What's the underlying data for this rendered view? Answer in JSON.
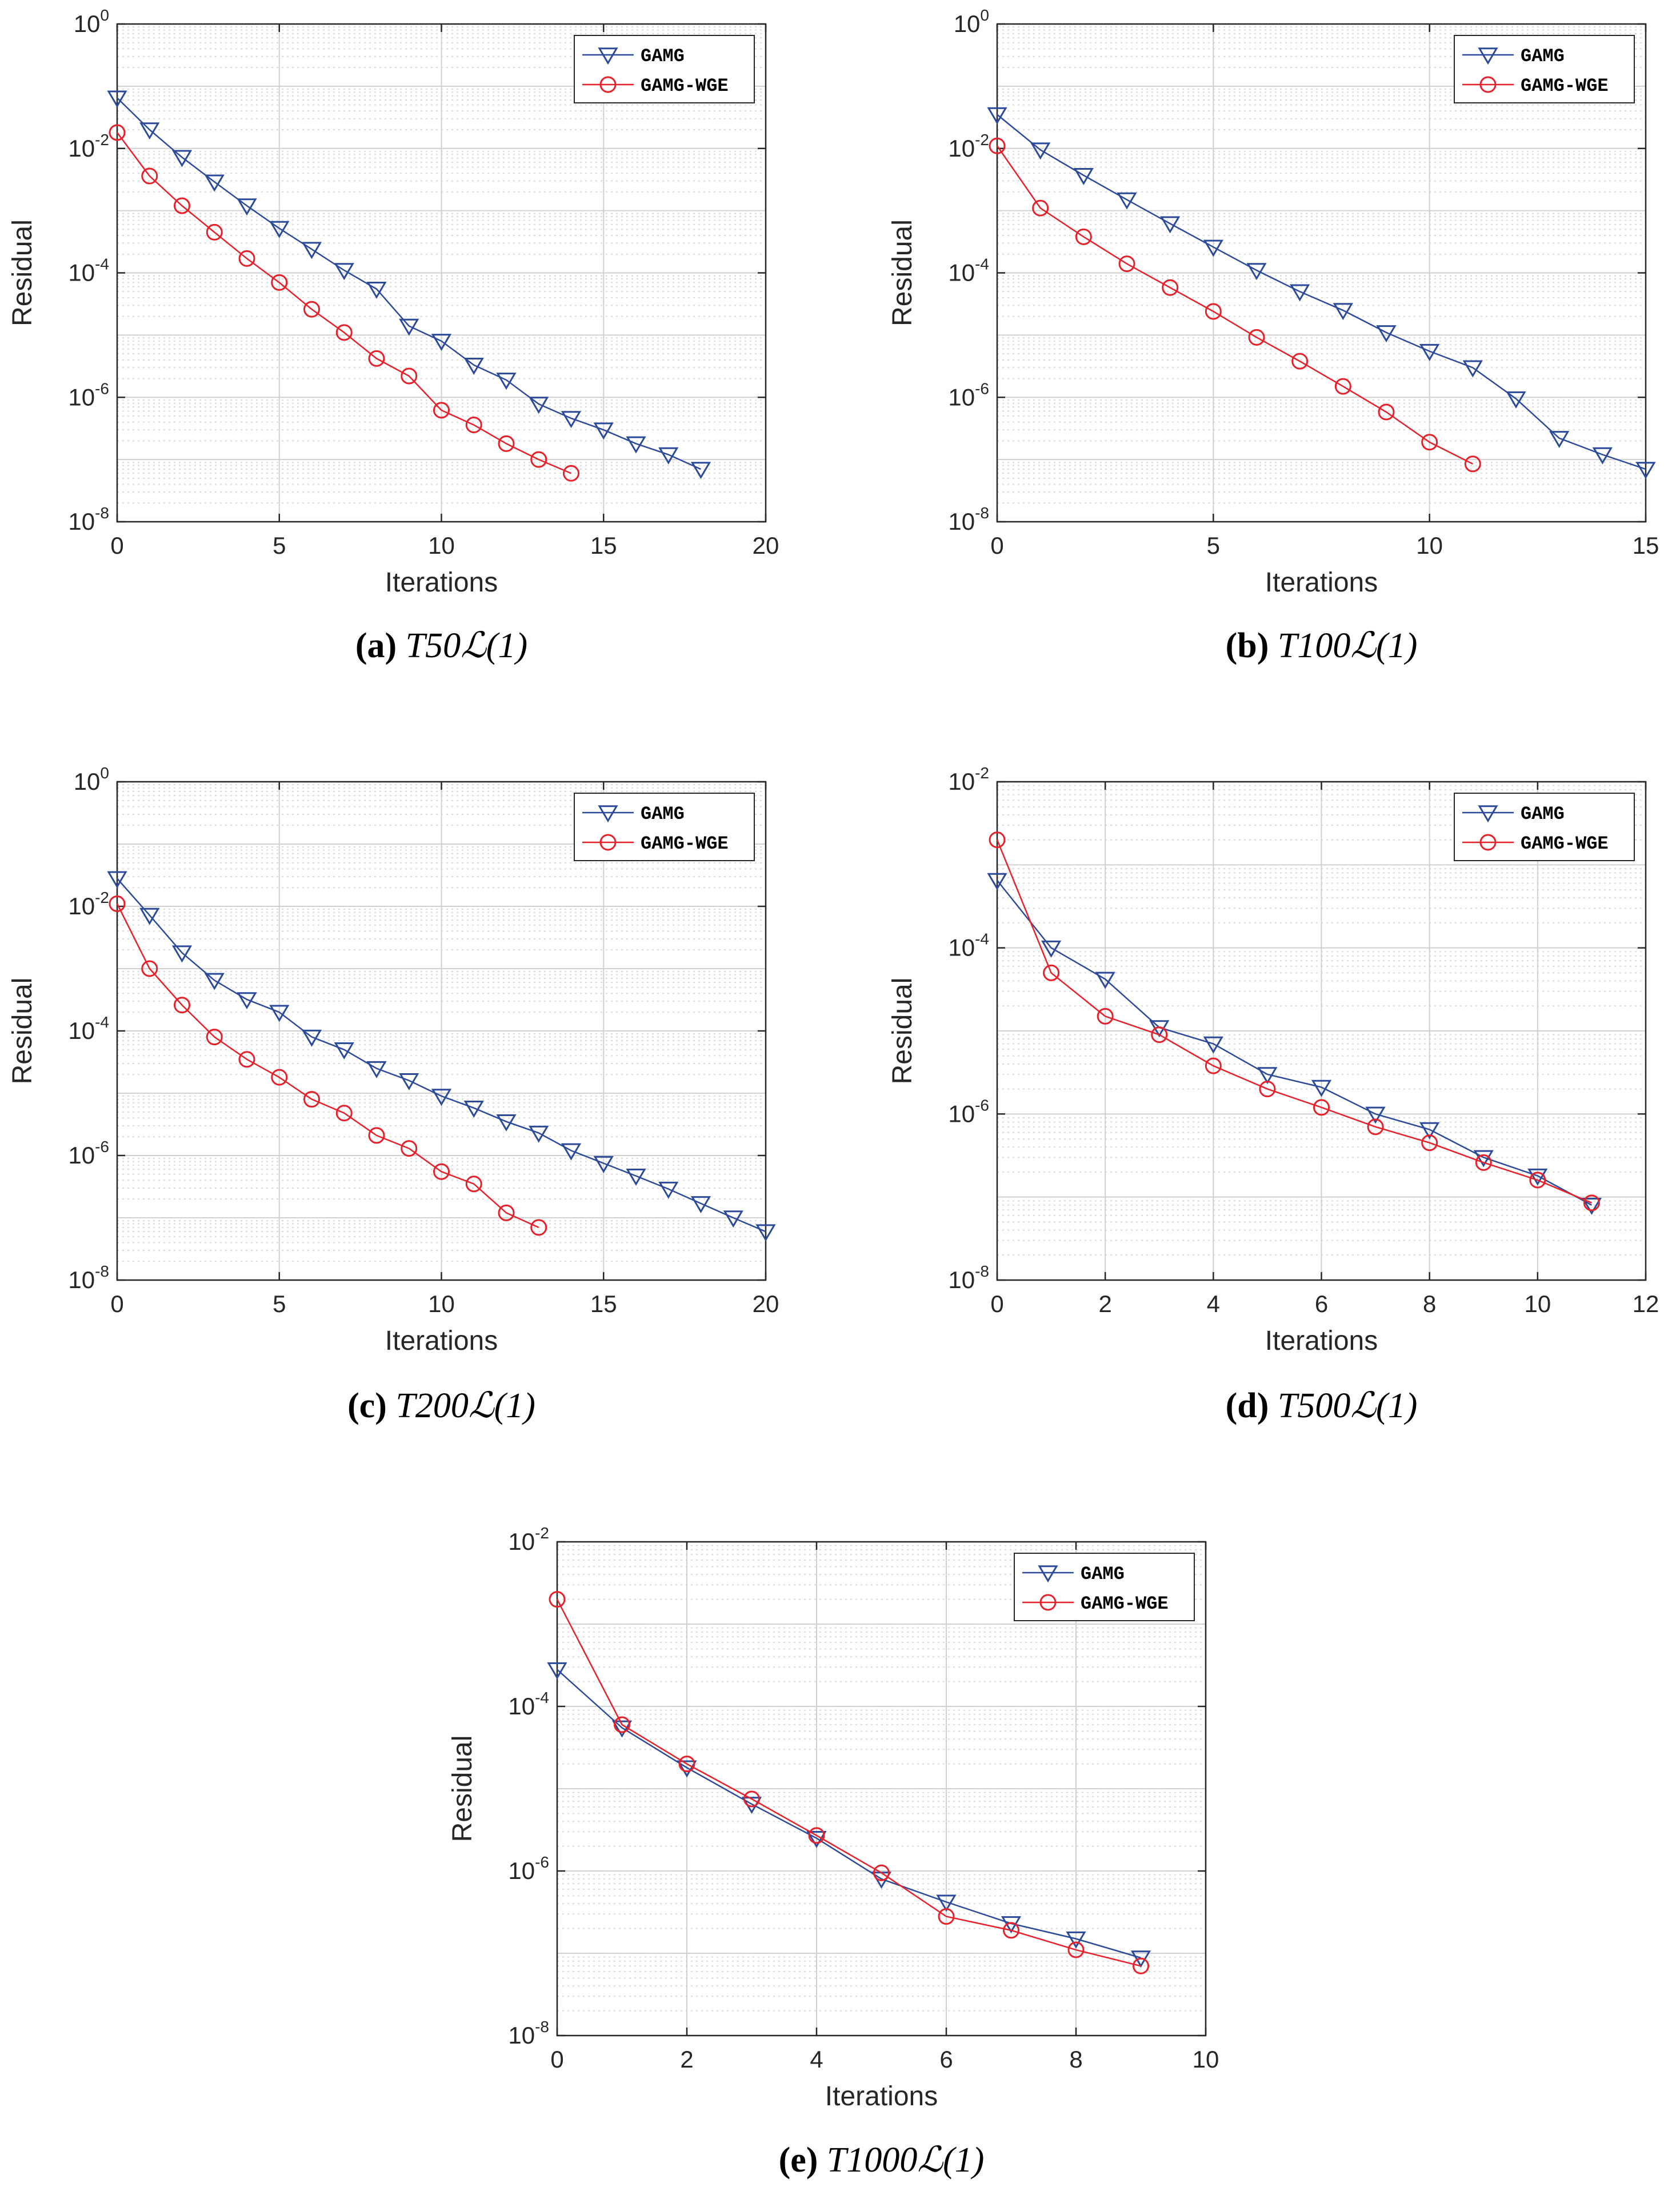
{
  "figure": {
    "legend_labels": [
      "GAMG",
      "GAMG-WGE"
    ],
    "series_colors": {
      "GAMG": "#2c4a9a",
      "GAMG-WGE": "#e8202a"
    }
  },
  "chart_data": [
    {
      "type": "line",
      "panel": "a",
      "caption_letter": "(a)",
      "caption_name": "T50ℒ(1)",
      "xlabel": "Iterations",
      "ylabel": "Residual",
      "y_scale": "log",
      "xlim": [
        0,
        20
      ],
      "x_ticks": [
        0,
        5,
        10,
        15,
        20
      ],
      "ylim": [
        1e-08,
        1
      ],
      "y_tick_labels": [
        {
          "base": "10",
          "exp": "0"
        },
        {
          "base": "10",
          "exp": "-2"
        },
        {
          "base": "10",
          "exp": "-4"
        },
        {
          "base": "10",
          "exp": "-6"
        },
        {
          "base": "10",
          "exp": "-8"
        }
      ],
      "legend_position": "top-right",
      "grid": true,
      "series": [
        {
          "name": "GAMG",
          "marker": "triangle-down",
          "x": [
            0,
            1,
            2,
            3,
            4,
            5,
            6,
            7,
            8,
            9,
            10,
            11,
            12,
            13,
            14,
            15,
            16,
            17,
            18
          ],
          "values": [
            0.065,
            0.02,
            0.0072,
            0.0029,
            0.0012,
            0.00052,
            0.00024,
            0.00011,
            5.5e-05,
            1.4e-05,
            8e-06,
            3.3e-06,
            1.9e-06,
            7.8e-07,
            4.6e-07,
            3e-07,
            1.8e-07,
            1.2e-07,
            7e-08
          ]
        },
        {
          "name": "GAMG-WGE",
          "marker": "circle",
          "x": [
            0,
            1,
            2,
            3,
            4,
            5,
            6,
            7,
            8,
            9,
            10,
            11,
            12,
            13,
            14
          ],
          "values": [
            0.018,
            0.0036,
            0.0012,
            0.00045,
            0.00017,
            7e-05,
            2.6e-05,
            1.1e-05,
            4.2e-06,
            2.2e-06,
            6.2e-07,
            3.6e-07,
            1.8e-07,
            1e-07,
            6e-08
          ]
        }
      ]
    },
    {
      "type": "line",
      "panel": "b",
      "caption_letter": "(b)",
      "caption_name": "T100ℒ(1)",
      "xlabel": "Iterations",
      "ylabel": "Residual",
      "y_scale": "log",
      "xlim": [
        0,
        15
      ],
      "x_ticks": [
        0,
        5,
        10,
        15
      ],
      "ylim": [
        1e-08,
        1
      ],
      "y_tick_labels": [
        {
          "base": "10",
          "exp": "0"
        },
        {
          "base": "10",
          "exp": "-2"
        },
        {
          "base": "10",
          "exp": "-4"
        },
        {
          "base": "10",
          "exp": "-6"
        },
        {
          "base": "10",
          "exp": "-8"
        }
      ],
      "legend_position": "top-right",
      "grid": true,
      "series": [
        {
          "name": "GAMG",
          "marker": "triangle-down",
          "x": [
            0,
            1,
            2,
            3,
            4,
            5,
            6,
            7,
            8,
            9,
            10,
            11,
            12,
            13,
            14,
            15
          ],
          "values": [
            0.035,
            0.0095,
            0.0037,
            0.0015,
            0.00062,
            0.00026,
            0.00011,
            5e-05,
            2.5e-05,
            1.1e-05,
            5.5e-06,
            3e-06,
            9.5e-07,
            2.2e-07,
            1.2e-07,
            7e-08
          ]
        },
        {
          "name": "GAMG-WGE",
          "marker": "circle",
          "x": [
            0,
            1,
            2,
            3,
            4,
            5,
            6,
            7,
            8,
            9,
            10,
            11
          ],
          "values": [
            0.011,
            0.0011,
            0.00038,
            0.00014,
            5.8e-05,
            2.4e-05,
            9.2e-06,
            3.8e-06,
            1.5e-06,
            5.8e-07,
            1.9e-07,
            8.5e-08
          ]
        }
      ]
    },
    {
      "type": "line",
      "panel": "c",
      "caption_letter": "(c)",
      "caption_name": "T200ℒ(1)",
      "xlabel": "Iterations",
      "ylabel": "Residual",
      "y_scale": "log",
      "xlim": [
        0,
        20
      ],
      "x_ticks": [
        0,
        5,
        10,
        15,
        20
      ],
      "ylim": [
        1e-08,
        1
      ],
      "y_tick_labels": [
        {
          "base": "10",
          "exp": "0"
        },
        {
          "base": "10",
          "exp": "-2"
        },
        {
          "base": "10",
          "exp": "-4"
        },
        {
          "base": "10",
          "exp": "-6"
        },
        {
          "base": "10",
          "exp": "-8"
        }
      ],
      "legend_position": "top-right",
      "grid": true,
      "series": [
        {
          "name": "GAMG",
          "marker": "triangle-down",
          "x": [
            0,
            1,
            2,
            3,
            4,
            5,
            6,
            7,
            8,
            9,
            10,
            11,
            12,
            13,
            14,
            15,
            16,
            17,
            18,
            19,
            20
          ],
          "values": [
            0.028,
            0.0072,
            0.0018,
            0.00065,
            0.00032,
            0.0002,
            8e-05,
            5e-05,
            2.5e-05,
            1.6e-05,
            9e-06,
            5.8e-06,
            3.5e-06,
            2.3e-06,
            1.2e-06,
            7.5e-07,
            4.7e-07,
            2.9e-07,
            1.7e-07,
            1e-07,
            6e-08
          ]
        },
        {
          "name": "GAMG-WGE",
          "marker": "circle",
          "x": [
            0,
            1,
            2,
            3,
            4,
            5,
            6,
            7,
            8,
            9,
            10,
            11,
            12,
            13
          ],
          "values": [
            0.011,
            0.001,
            0.00026,
            8e-05,
            3.5e-05,
            1.8e-05,
            8e-06,
            4.8e-06,
            2.1e-06,
            1.3e-06,
            5.5e-07,
            3.5e-07,
            1.2e-07,
            7e-08
          ]
        }
      ]
    },
    {
      "type": "line",
      "panel": "d",
      "caption_letter": "(d)",
      "caption_name": "T500ℒ(1)",
      "xlabel": "Iterations",
      "ylabel": "Residual",
      "y_scale": "log",
      "xlim": [
        0,
        12
      ],
      "x_ticks": [
        0,
        2,
        4,
        6,
        8,
        10,
        12
      ],
      "ylim": [
        1e-08,
        0.01
      ],
      "y_tick_labels": [
        {
          "base": "10",
          "exp": "-2"
        },
        {
          "base": "10",
          "exp": "-4"
        },
        {
          "base": "10",
          "exp": "-6"
        },
        {
          "base": "10",
          "exp": "-8"
        }
      ],
      "legend_position": "top-right",
      "grid": true,
      "series": [
        {
          "name": "GAMG",
          "marker": "triangle-down",
          "x": [
            0,
            1,
            2,
            3,
            4,
            5,
            6,
            7,
            8,
            9,
            10,
            11
          ],
          "values": [
            0.00065,
            0.0001,
            4.2e-05,
            1.1e-05,
            7e-06,
            3e-06,
            2.1e-06,
            1e-06,
            6.5e-07,
            3e-07,
            1.8e-07,
            8e-08
          ]
        },
        {
          "name": "GAMG-WGE",
          "marker": "circle",
          "x": [
            0,
            1,
            2,
            3,
            4,
            5,
            6,
            7,
            8,
            9,
            10,
            11
          ],
          "values": [
            0.002,
            5e-05,
            1.5e-05,
            9e-06,
            3.8e-06,
            2e-06,
            1.2e-06,
            7e-07,
            4.5e-07,
            2.6e-07,
            1.6e-07,
            8.5e-08
          ]
        }
      ]
    },
    {
      "type": "line",
      "panel": "e",
      "caption_letter": "(e)",
      "caption_name": "T1000ℒ(1)",
      "xlabel": "Iterations",
      "ylabel": "Residual",
      "y_scale": "log",
      "xlim": [
        0,
        10
      ],
      "x_ticks": [
        0,
        2,
        4,
        6,
        8,
        10
      ],
      "ylim": [
        1e-08,
        0.01
      ],
      "y_tick_labels": [
        {
          "base": "10",
          "exp": "-2"
        },
        {
          "base": "10",
          "exp": "-4"
        },
        {
          "base": "10",
          "exp": "-6"
        },
        {
          "base": "10",
          "exp": "-8"
        }
      ],
      "legend_position": "top-right",
      "grid": true,
      "series": [
        {
          "name": "GAMG",
          "marker": "triangle-down",
          "x": [
            0,
            1,
            2,
            3,
            4,
            5,
            6,
            7,
            8,
            9
          ],
          "values": [
            0.00028,
            5.5e-05,
            1.8e-05,
            6.5e-06,
            2.5e-06,
            8e-07,
            4.2e-07,
            2.3e-07,
            1.5e-07,
            8.8e-08
          ]
        },
        {
          "name": "GAMG-WGE",
          "marker": "circle",
          "x": [
            0,
            1,
            2,
            3,
            4,
            5,
            6,
            7,
            8,
            9
          ],
          "values": [
            0.002,
            6e-05,
            2e-05,
            7.5e-06,
            2.7e-06,
            9.5e-07,
            2.8e-07,
            1.9e-07,
            1.1e-07,
            7e-08
          ]
        }
      ]
    }
  ]
}
